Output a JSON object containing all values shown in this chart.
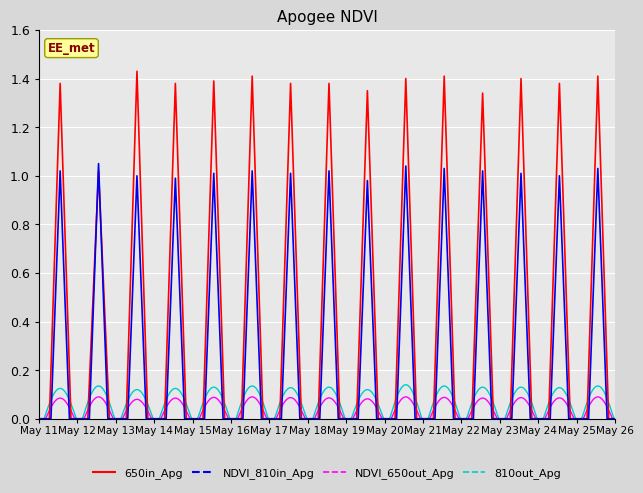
{
  "title": "Apogee NDVI",
  "annotation": "EE_met",
  "annotation_color": "#8B0000",
  "annotation_bg": "#FFFF99",
  "ylim": [
    0.0,
    1.6
  ],
  "yticks": [
    0.0,
    0.2,
    0.4,
    0.6,
    0.8,
    1.0,
    1.2,
    1.4,
    1.6
  ],
  "xtick_labels": [
    "May 11",
    "May 12",
    "May 13",
    "May 14",
    "May 15",
    "May 16",
    "May 17",
    "May 18",
    "May 19",
    "May 20",
    "May 21",
    "May 22",
    "May 23",
    "May 24",
    "May 25",
    "May 26"
  ],
  "num_cycles": 15,
  "series_650in": {
    "color": "#FF0000",
    "linewidth": 1.2,
    "peaks": [
      1.38,
      1.02,
      1.43,
      1.38,
      1.39,
      1.41,
      1.38,
      1.38,
      1.35,
      1.4,
      1.41,
      1.34,
      1.4,
      1.38,
      1.41
    ]
  },
  "series_810in": {
    "color": "#0000EE",
    "linewidth": 1.2,
    "peaks": [
      1.02,
      1.05,
      1.0,
      0.99,
      1.01,
      1.02,
      1.01,
      1.02,
      0.98,
      1.04,
      1.03,
      1.02,
      1.01,
      1.0,
      1.03
    ]
  },
  "series_650out": {
    "color": "#FF00FF",
    "linewidth": 1.0,
    "peaks": [
      0.085,
      0.09,
      0.08,
      0.085,
      0.088,
      0.09,
      0.087,
      0.086,
      0.082,
      0.09,
      0.088,
      0.085,
      0.087,
      0.086,
      0.09
    ]
  },
  "series_810out": {
    "color": "#00CCCC",
    "linewidth": 1.0,
    "peaks": [
      0.125,
      0.135,
      0.12,
      0.125,
      0.13,
      0.135,
      0.128,
      0.13,
      0.12,
      0.14,
      0.135,
      0.13,
      0.13,
      0.128,
      0.135
    ]
  },
  "background_color": "#E0E0E0",
  "plot_bg_color": "#E8E8E8",
  "grid_color": "#FFFFFF",
  "fig_bg_color": "#D8D8D8"
}
